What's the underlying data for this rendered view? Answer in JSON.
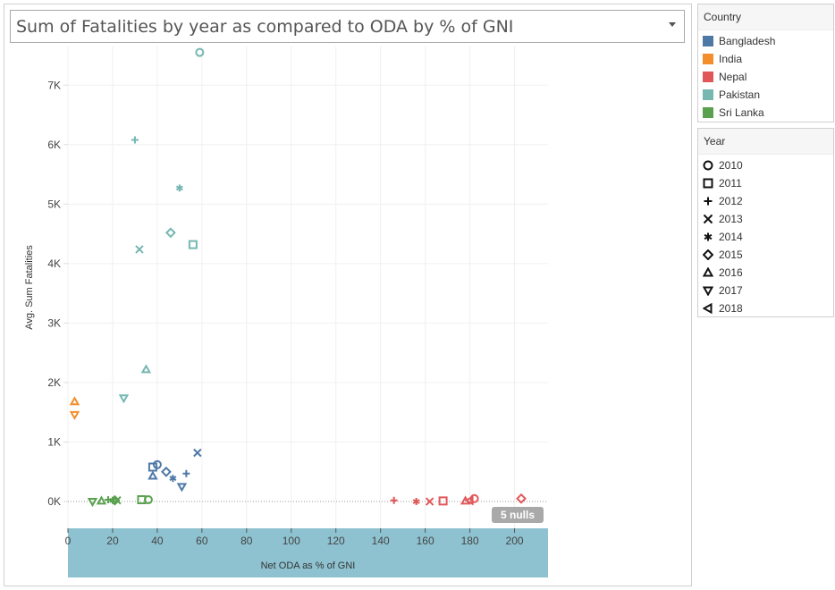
{
  "title": "Sum of Fatalities by year as compared to ODA by % of GNI",
  "legend_country": {
    "title": "Country",
    "items": [
      {
        "label": "Bangladesh",
        "color": "#4e79a7"
      },
      {
        "label": "India",
        "color": "#f28e2b"
      },
      {
        "label": "Nepal",
        "color": "#e15759"
      },
      {
        "label": "Pakistan",
        "color": "#76b7b2"
      },
      {
        "label": "Sri Lanka",
        "color": "#59a14f"
      }
    ]
  },
  "legend_year": {
    "title": "Year",
    "items": [
      {
        "label": "2010",
        "shape": "circle"
      },
      {
        "label": "2011",
        "shape": "square"
      },
      {
        "label": "2012",
        "shape": "plus"
      },
      {
        "label": "2013",
        "shape": "cross"
      },
      {
        "label": "2014",
        "shape": "asterisk"
      },
      {
        "label": "2015",
        "shape": "diamond"
      },
      {
        "label": "2016",
        "shape": "triangle-up"
      },
      {
        "label": "2017",
        "shape": "triangle-down"
      },
      {
        "label": "2018",
        "shape": "triangle-left"
      }
    ]
  },
  "chart_data": {
    "type": "scatter",
    "xlabel": "Net ODA as % of GNI",
    "ylabel": "Avg. Sum Fatalities",
    "xlim": [
      0,
      215
    ],
    "ylim": [
      -450,
      7650
    ],
    "x_ticks": [
      0,
      20,
      40,
      60,
      80,
      100,
      120,
      140,
      160,
      180,
      200
    ],
    "x_tick_labels": [
      "0",
      "20",
      "40",
      "60",
      "80",
      "100",
      "120",
      "140",
      "160",
      "180",
      "200"
    ],
    "y_ticks": [
      0,
      1000,
      2000,
      3000,
      4000,
      5000,
      6000,
      7000
    ],
    "y_tick_labels": [
      "0K",
      "1K",
      "2K",
      "3K",
      "4K",
      "5K",
      "6K",
      "7K"
    ],
    "nulls_label": "5 nulls",
    "grid": true,
    "points": [
      {
        "country": "Bangladesh",
        "year": "2010",
        "x": 40,
        "y": 620
      },
      {
        "country": "Bangladesh",
        "year": "2011",
        "x": 38,
        "y": 580
      },
      {
        "country": "Bangladesh",
        "year": "2012",
        "x": 53,
        "y": 470
      },
      {
        "country": "Bangladesh",
        "year": "2013",
        "x": 58,
        "y": 820
      },
      {
        "country": "Bangladesh",
        "year": "2014",
        "x": 47,
        "y": 390
      },
      {
        "country": "Bangladesh",
        "year": "2015",
        "x": 44,
        "y": 500
      },
      {
        "country": "Bangladesh",
        "year": "2016",
        "x": 38,
        "y": 430
      },
      {
        "country": "Bangladesh",
        "year": "2017",
        "x": 51,
        "y": 250
      },
      {
        "country": "India",
        "year": "2016",
        "x": 3,
        "y": 1680
      },
      {
        "country": "India",
        "year": "2017",
        "x": 3,
        "y": 1460
      },
      {
        "country": "Nepal",
        "year": "2010",
        "x": 182,
        "y": 50
      },
      {
        "country": "Nepal",
        "year": "2011",
        "x": 168,
        "y": 10
      },
      {
        "country": "Nepal",
        "year": "2012",
        "x": 146,
        "y": 20
      },
      {
        "country": "Nepal",
        "year": "2013",
        "x": 162,
        "y": 0
      },
      {
        "country": "Nepal",
        "year": "2014",
        "x": 156,
        "y": 0
      },
      {
        "country": "Nepal",
        "year": "2015",
        "x": 203,
        "y": 50
      },
      {
        "country": "Nepal",
        "year": "2016",
        "x": 178,
        "y": 10
      },
      {
        "country": "Nepal",
        "year": "2018",
        "x": 180,
        "y": 20
      },
      {
        "country": "Pakistan",
        "year": "2010",
        "x": 59,
        "y": 7550
      },
      {
        "country": "Pakistan",
        "year": "2011",
        "x": 56,
        "y": 4320
      },
      {
        "country": "Pakistan",
        "year": "2012",
        "x": 30,
        "y": 6080
      },
      {
        "country": "Pakistan",
        "year": "2013",
        "x": 32,
        "y": 4240
      },
      {
        "country": "Pakistan",
        "year": "2014",
        "x": 50,
        "y": 5270
      },
      {
        "country": "Pakistan",
        "year": "2015",
        "x": 46,
        "y": 4520
      },
      {
        "country": "Pakistan",
        "year": "2016",
        "x": 35,
        "y": 2220
      },
      {
        "country": "Pakistan",
        "year": "2017",
        "x": 25,
        "y": 1740
      },
      {
        "country": "Sri Lanka",
        "year": "2010",
        "x": 36,
        "y": 30
      },
      {
        "country": "Sri Lanka",
        "year": "2011",
        "x": 33,
        "y": 30
      },
      {
        "country": "Sri Lanka",
        "year": "2012",
        "x": 18,
        "y": 30
      },
      {
        "country": "Sri Lanka",
        "year": "2013",
        "x": 22,
        "y": 20
      },
      {
        "country": "Sri Lanka",
        "year": "2014",
        "x": 20,
        "y": 20
      },
      {
        "country": "Sri Lanka",
        "year": "2015",
        "x": 21,
        "y": 20
      },
      {
        "country": "Sri Lanka",
        "year": "2016",
        "x": 15,
        "y": 10
      },
      {
        "country": "Sri Lanka",
        "year": "2017",
        "x": 11,
        "y": 0
      }
    ]
  }
}
